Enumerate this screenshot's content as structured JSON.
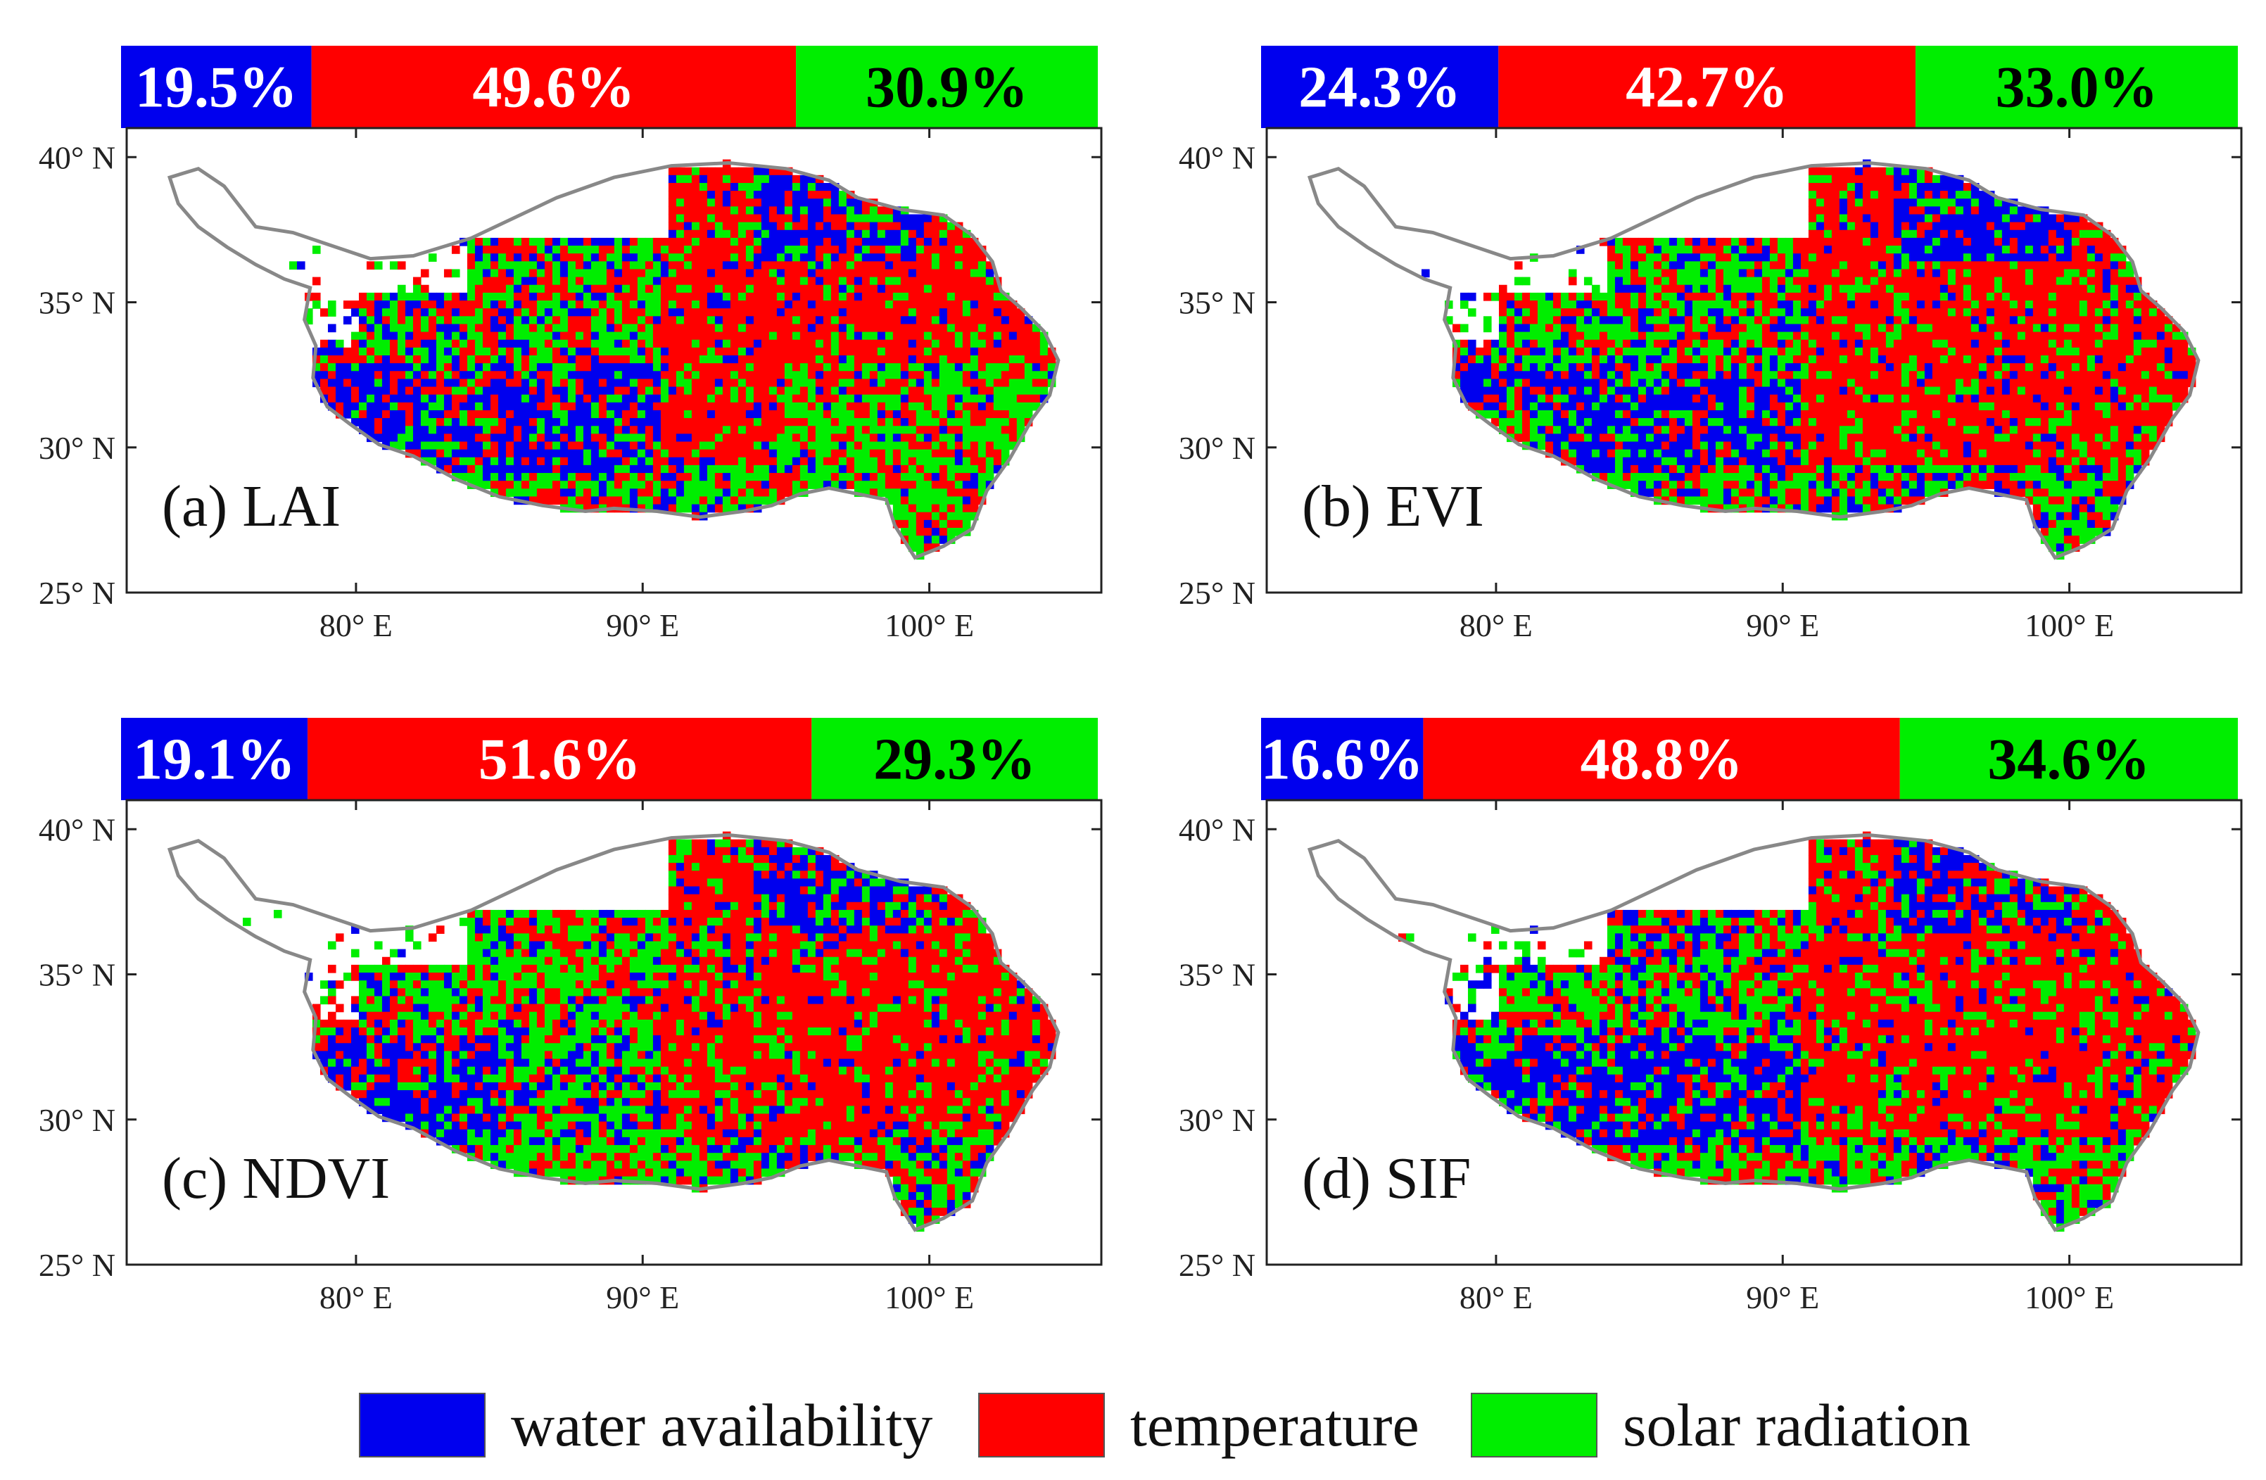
{
  "colors": {
    "water": "#0000ee",
    "temperature": "#ff0000",
    "solar": "#00ee00",
    "outline": "#888888"
  },
  "legend": [
    {
      "label": "water availability",
      "color": "#0000ee"
    },
    {
      "label": "temperature",
      "color": "#ff0000"
    },
    {
      "label": "solar radiation",
      "color": "#00ee00"
    }
  ],
  "chart_data": [
    {
      "type": "heatmap",
      "title": "(a) LAI",
      "lat_ticks": [
        "40° N",
        "35° N",
        "30° N",
        "25° N"
      ],
      "lon_ticks": [
        "80° E",
        "90° E",
        "100° E"
      ],
      "lat_range": [
        25,
        41
      ],
      "lon_range": [
        72,
        106
      ],
      "shares": [
        {
          "category": "water availability",
          "value": 19.5,
          "label": "19.5%"
        },
        {
          "category": "temperature",
          "value": 49.6,
          "label": "49.6%"
        },
        {
          "category": "solar radiation",
          "value": 30.9,
          "label": "30.9%"
        }
      ]
    },
    {
      "type": "heatmap",
      "title": "(b) EVI",
      "lat_ticks": [
        "40° N",
        "35° N",
        "30° N",
        "25° N"
      ],
      "lon_ticks": [
        "80° E",
        "90° E",
        "100° E"
      ],
      "lat_range": [
        25,
        41
      ],
      "lon_range": [
        72,
        106
      ],
      "shares": [
        {
          "category": "water availability",
          "value": 24.3,
          "label": "24.3%"
        },
        {
          "category": "temperature",
          "value": 42.7,
          "label": "42.7%"
        },
        {
          "category": "solar radiation",
          "value": 33.0,
          "label": "33.0%"
        }
      ]
    },
    {
      "type": "heatmap",
      "title": "(c) NDVI",
      "lat_ticks": [
        "40° N",
        "35° N",
        "30° N",
        "25° N"
      ],
      "lon_ticks": [
        "80° E",
        "90° E",
        "100° E"
      ],
      "lat_range": [
        25,
        41
      ],
      "lon_range": [
        72,
        106
      ],
      "shares": [
        {
          "category": "water availability",
          "value": 19.1,
          "label": "19.1%"
        },
        {
          "category": "temperature",
          "value": 51.6,
          "label": "51.6%"
        },
        {
          "category": "solar radiation",
          "value": 29.3,
          "label": "29.3%"
        }
      ]
    },
    {
      "type": "heatmap",
      "title": "(d) SIF",
      "lat_ticks": [
        "40° N",
        "35° N",
        "30° N",
        "25° N"
      ],
      "lon_ticks": [
        "80° E",
        "90° E",
        "100° E"
      ],
      "lat_range": [
        25,
        41
      ],
      "lon_range": [
        72,
        106
      ],
      "shares": [
        {
          "category": "water availability",
          "value": 16.6,
          "label": "16.6%"
        },
        {
          "category": "temperature",
          "value": 48.8,
          "label": "48.8%"
        },
        {
          "category": "solar radiation",
          "value": 34.6,
          "label": "34.6%"
        }
      ]
    }
  ]
}
